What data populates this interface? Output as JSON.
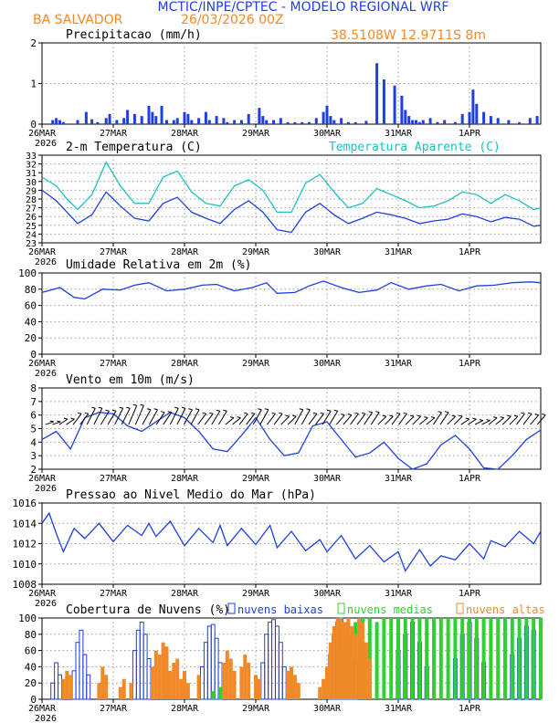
{
  "header": {
    "title": "MCTIC/INPE/CPTEC - MODELO REGIONAL WRF",
    "station": "BA SALVADOR",
    "run": "26/03/2026 00Z",
    "coords": "38.5108W 12.9711S 8m"
  },
  "colors": {
    "blue": "#1f3fe0",
    "cyan": "#20c0c0",
    "orange": "#f08a28",
    "green": "#30d030",
    "black": "#000000",
    "grid": "#9a9a9a"
  },
  "x_axis": {
    "labels": [
      "26MAR",
      "27MAR",
      "28MAR",
      "29MAR",
      "30MAR",
      "31MAR",
      "1APR"
    ],
    "year": "2026",
    "days": 7
  },
  "chart_data": [
    {
      "id": "precip",
      "type": "bar",
      "title": "Precipitacao (mm/h)",
      "ylim": [
        0,
        2
      ],
      "yticks": [
        "0",
        "1",
        "2"
      ],
      "series": [
        {
          "name": "precipitation",
          "color": "#1f3fe0",
          "x": [
            0.15,
            0.2,
            0.25,
            0.3,
            0.5,
            0.62,
            0.7,
            0.78,
            0.9,
            0.95,
            1.05,
            1.15,
            1.2,
            1.3,
            1.4,
            1.5,
            1.55,
            1.6,
            1.68,
            1.75,
            1.85,
            1.9,
            2.0,
            2.05,
            2.1,
            2.2,
            2.3,
            2.35,
            2.45,
            2.55,
            2.6,
            2.7,
            2.8,
            2.9,
            3.05,
            3.1,
            3.15,
            3.25,
            3.35,
            3.45,
            3.55,
            3.65,
            3.75,
            3.85,
            3.95,
            4.0,
            4.05,
            4.1,
            4.2,
            4.3,
            4.4,
            4.55,
            4.7,
            4.8,
            4.95,
            5.05,
            5.1,
            5.15,
            5.2,
            5.25,
            5.3,
            5.35,
            5.45,
            5.55,
            5.65,
            5.8,
            5.9,
            6.0,
            6.05,
            6.1,
            6.2,
            6.3,
            6.4,
            6.55,
            6.7,
            6.85,
            6.95
          ],
          "values": [
            0.1,
            0.15,
            0.1,
            0.05,
            0.1,
            0.3,
            0.12,
            0.05,
            0.15,
            0.25,
            0.1,
            0.15,
            0.35,
            0.25,
            0.2,
            0.45,
            0.3,
            0.2,
            0.45,
            0.1,
            0.1,
            0.15,
            0.3,
            0.25,
            0.1,
            0.15,
            0.3,
            0.1,
            0.2,
            0.15,
            0.05,
            0.1,
            0.1,
            0.25,
            0.4,
            0.2,
            0.1,
            0.1,
            0.15,
            0.05,
            0.05,
            0.05,
            0.05,
            0.15,
            0.3,
            0.45,
            0.2,
            0.1,
            0.15,
            0.05,
            0.05,
            0.08,
            1.5,
            1.1,
            0.95,
            0.7,
            0.35,
            0.2,
            0.1,
            0.1,
            0.05,
            0.1,
            0.15,
            0.05,
            0.1,
            0.05,
            0.25,
            0.3,
            0.85,
            0.5,
            0.3,
            0.2,
            0.15,
            0.1,
            0.05,
            0.15,
            0.2
          ]
        }
      ]
    },
    {
      "id": "temp",
      "type": "line",
      "title": "2-m Temperatura (C)",
      "legend": "Temperatura Aparente (C)",
      "ylim": [
        23,
        33
      ],
      "yticks": [
        "23",
        "24",
        "25",
        "26",
        "27",
        "28",
        "29",
        "30",
        "31",
        "32",
        "33"
      ],
      "series": [
        {
          "name": "2-m Temperatura",
          "x": [
            0,
            0.2,
            0.35,
            0.5,
            0.7,
            0.9,
            1.1,
            1.3,
            1.5,
            1.7,
            1.9,
            2.1,
            2.3,
            2.5,
            2.7,
            2.9,
            3.1,
            3.3,
            3.5,
            3.7,
            3.9,
            4.1,
            4.3,
            4.5,
            4.7,
            4.9,
            5.1,
            5.3,
            5.5,
            5.7,
            5.9,
            6.1,
            6.3,
            6.5,
            6.7,
            6.9,
            7.0
          ],
          "values": [
            29,
            27.8,
            26.5,
            25.2,
            26.2,
            28.8,
            27.2,
            25.8,
            25.5,
            27.5,
            28.2,
            26.5,
            25.8,
            25.2,
            26.8,
            27.8,
            26.5,
            24.5,
            24.2,
            26.5,
            27.5,
            26.2,
            25.2,
            25.8,
            26.5,
            26.2,
            25.8,
            25.2,
            25.5,
            25.7,
            26.3,
            26,
            25.4,
            25.9,
            25.7,
            24.9,
            25
          ]
        },
        {
          "name": "Temperatura Aparente",
          "x": [
            0,
            0.2,
            0.35,
            0.5,
            0.7,
            0.9,
            1.1,
            1.3,
            1.5,
            1.7,
            1.9,
            2.1,
            2.3,
            2.5,
            2.7,
            2.9,
            3.1,
            3.3,
            3.5,
            3.7,
            3.9,
            4.1,
            4.3,
            4.5,
            4.7,
            4.9,
            5.1,
            5.3,
            5.5,
            5.7,
            5.9,
            6.1,
            6.3,
            6.5,
            6.7,
            6.9,
            7.0
          ],
          "values": [
            30.5,
            29.5,
            28,
            26.8,
            28.5,
            32.2,
            29.5,
            27.5,
            27.5,
            30.5,
            31.2,
            28.8,
            27.5,
            27.2,
            29.5,
            30.2,
            29,
            26.5,
            26.5,
            29.8,
            30.8,
            28.8,
            27,
            27.5,
            29.2,
            28.5,
            27.8,
            27,
            27.2,
            27.8,
            28.8,
            28.5,
            27.5,
            28.5,
            27.8,
            26.8,
            27
          ]
        }
      ]
    },
    {
      "id": "rh",
      "type": "line",
      "title": "Umidade Relativa em 2m (%)",
      "ylim": [
        0,
        100
      ],
      "yticks": [
        "0",
        "20",
        "40",
        "60",
        "80",
        "100"
      ],
      "series": [
        {
          "name": "Umidade Relativa",
          "x": [
            0,
            0.25,
            0.45,
            0.6,
            0.85,
            1.1,
            1.3,
            1.5,
            1.75,
            2.0,
            2.25,
            2.45,
            2.7,
            2.95,
            3.15,
            3.3,
            3.55,
            3.75,
            3.95,
            4.2,
            4.45,
            4.7,
            4.9,
            5.15,
            5.4,
            5.6,
            5.85,
            6.1,
            6.35,
            6.6,
            6.85,
            7.0
          ],
          "values": [
            76,
            82,
            70,
            68,
            80,
            79,
            85,
            88,
            78,
            80,
            85,
            86,
            78,
            82,
            88,
            75,
            76,
            84,
            90,
            82,
            76,
            79,
            88,
            80,
            84,
            86,
            78,
            84,
            85,
            88,
            89,
            88
          ]
        }
      ]
    },
    {
      "id": "wind",
      "type": "line",
      "title": "Vento em 10m (m/s)",
      "ylim": [
        2,
        8
      ],
      "yticks": [
        "2",
        "3",
        "4",
        "5",
        "6",
        "7",
        "8"
      ],
      "series": [
        {
          "name": "Velocidade",
          "x": [
            0,
            0.2,
            0.4,
            0.6,
            0.8,
            1.0,
            1.2,
            1.4,
            1.6,
            1.8,
            2.0,
            2.2,
            2.4,
            2.6,
            2.8,
            3.0,
            3.2,
            3.4,
            3.6,
            3.8,
            4.0,
            4.2,
            4.4,
            4.6,
            4.8,
            5.0,
            5.2,
            5.4,
            5.6,
            5.8,
            6.0,
            6.2,
            6.4,
            6.6,
            6.8,
            7.0
          ],
          "values": [
            4.2,
            4.8,
            3.5,
            5.8,
            6.2,
            6.1,
            5.2,
            4.8,
            5.5,
            6.2,
            5.8,
            4.8,
            3.5,
            3.3,
            4.5,
            5.8,
            4.2,
            3.0,
            3.2,
            5.2,
            5.5,
            4.2,
            2.9,
            3.2,
            4.0,
            2.8,
            2.0,
            2.4,
            3.8,
            4.5,
            3.5,
            2.1,
            2.0,
            3.0,
            4.2,
            4.9
          ]
        }
      ],
      "barbs": {
        "count": 72,
        "ybase": 5.3,
        "rise": [
          0.2,
          0.4,
          0.8,
          1.2,
          1.0,
          1.2,
          1.4,
          1.1,
          0.9,
          1.2,
          1.1,
          0.8,
          1.0,
          0.5,
          0.8,
          1.1,
          0.8,
          0.6,
          1.1,
          0.8,
          1.0,
          0.7,
          0.8,
          0.9,
          0.6,
          0.8,
          0.6,
          0.5,
          0.9,
          0.6,
          0.4,
          0.3,
          0.5,
          0.6,
          0.8,
          0.7
        ]
      }
    },
    {
      "id": "pres",
      "type": "line",
      "title": "Pressao ao Nivel Medio do Mar (hPa)",
      "ylim": [
        1008,
        1016
      ],
      "yticks": [
        "1008",
        "1010",
        "1012",
        "1014",
        "1016"
      ],
      "series": [
        {
          "name": "Pressao",
          "x": [
            0,
            0.1,
            0.2,
            0.3,
            0.45,
            0.6,
            0.8,
            1.0,
            1.2,
            1.4,
            1.5,
            1.6,
            1.8,
            2.0,
            2.2,
            2.4,
            2.5,
            2.6,
            2.8,
            3.0,
            3.2,
            3.3,
            3.5,
            3.7,
            3.9,
            4.0,
            4.2,
            4.4,
            4.6,
            4.8,
            5.0,
            5.1,
            5.3,
            5.45,
            5.6,
            5.8,
            6.0,
            6.2,
            6.3,
            6.5,
            6.7,
            6.9,
            7.0
          ],
          "values": [
            1014,
            1015,
            1013,
            1011.2,
            1013.5,
            1012.5,
            1014,
            1012.2,
            1013.8,
            1012.8,
            1014,
            1012.7,
            1014.2,
            1011.8,
            1013.5,
            1012.1,
            1013.8,
            1011.8,
            1013.5,
            1011.9,
            1013.8,
            1011.6,
            1013.2,
            1011.3,
            1012.4,
            1011.2,
            1012.8,
            1010.5,
            1011.8,
            1010.2,
            1011.2,
            1009.3,
            1011.4,
            1009.8,
            1010.8,
            1010.4,
            1012,
            1010.5,
            1012.3,
            1011.7,
            1013.2,
            1012,
            1013.2
          ]
        }
      ]
    },
    {
      "id": "clouds",
      "type": "bar",
      "title": "Cobertura de Nuvens (%)",
      "ylim": [
        0,
        100
      ],
      "yticks": [
        "0",
        "20",
        "40",
        "60",
        "80",
        "100"
      ],
      "legend": [
        "nuvens baixas",
        "nuvens medias",
        "nuvens altas"
      ],
      "series": [
        {
          "name": "nuvens baixas",
          "color": "#1f3fe0",
          "style": "outline",
          "x": [
            0.15,
            0.2,
            0.25,
            0.45,
            0.5,
            0.55,
            0.6,
            0.65,
            1.3,
            1.35,
            1.4,
            1.45,
            1.5,
            2.25,
            2.3,
            2.35,
            2.4,
            2.45,
            2.5,
            3.1,
            3.15,
            3.2,
            3.25,
            3.3,
            3.35,
            3.4,
            4.05,
            4.1,
            4.15,
            4.2,
            4.25,
            4.3,
            4.35,
            4.4,
            5.0,
            5.1,
            5.2,
            5.3,
            5.4,
            5.8,
            5.9,
            6.0,
            6.1,
            6.2,
            6.6,
            6.7,
            6.8,
            6.9
          ],
          "values": [
            20,
            45,
            30,
            35,
            70,
            85,
            55,
            30,
            60,
            85,
            95,
            80,
            50,
            40,
            70,
            90,
            92,
            75,
            45,
            45,
            80,
            95,
            98,
            90,
            70,
            40,
            55,
            80,
            95,
            100,
            85,
            70,
            50,
            45,
            60,
            80,
            95,
            70,
            40,
            50,
            80,
            95,
            75,
            45,
            55,
            75,
            90,
            85
          ]
        },
        {
          "name": "nuvens medias",
          "color": "#30d030",
          "style": "fill",
          "x": [
            2.4,
            2.5,
            4.1,
            4.2,
            4.3,
            4.4,
            4.5,
            4.6,
            4.7,
            4.8,
            4.9,
            5.0,
            5.1,
            5.2,
            5.3,
            5.4,
            5.5,
            5.6,
            5.7,
            5.8,
            5.9,
            6.0,
            6.1,
            6.2,
            6.3,
            6.4,
            6.5,
            6.6,
            6.7,
            6.8,
            6.9,
            7.0
          ],
          "values": [
            10,
            15,
            30,
            60,
            80,
            95,
            100,
            100,
            95,
            100,
            100,
            100,
            100,
            100,
            100,
            100,
            100,
            100,
            100,
            100,
            100,
            100,
            100,
            100,
            100,
            100,
            100,
            100,
            100,
            100,
            100,
            100
          ]
        },
        {
          "name": "nuvens altas",
          "color": "#f08a28",
          "style": "fill",
          "x": [
            0.3,
            0.35,
            0.4,
            0.8,
            0.85,
            0.9,
            1.1,
            1.15,
            1.25,
            1.55,
            1.6,
            1.65,
            1.7,
            1.75,
            1.8,
            1.85,
            1.9,
            1.95,
            2.0,
            2.05,
            2.2,
            2.55,
            2.6,
            2.65,
            2.7,
            2.8,
            2.85,
            2.9,
            3.0,
            3.05,
            3.45,
            3.5,
            3.55,
            3.6,
            3.9,
            3.95,
            4.0,
            4.05,
            4.1,
            4.15,
            4.2,
            4.25,
            4.3,
            4.35,
            4.4,
            4.45,
            4.5,
            4.55,
            4.6
          ],
          "values": [
            25,
            35,
            30,
            20,
            40,
            30,
            15,
            25,
            20,
            40,
            60,
            55,
            70,
            65,
            35,
            45,
            50,
            25,
            35,
            20,
            30,
            45,
            60,
            50,
            35,
            40,
            55,
            45,
            30,
            25,
            35,
            40,
            30,
            20,
            15,
            25,
            40,
            70,
            90,
            100,
            100,
            95,
            100,
            90,
            80,
            100,
            95,
            70,
            50
          ]
        }
      ]
    }
  ]
}
